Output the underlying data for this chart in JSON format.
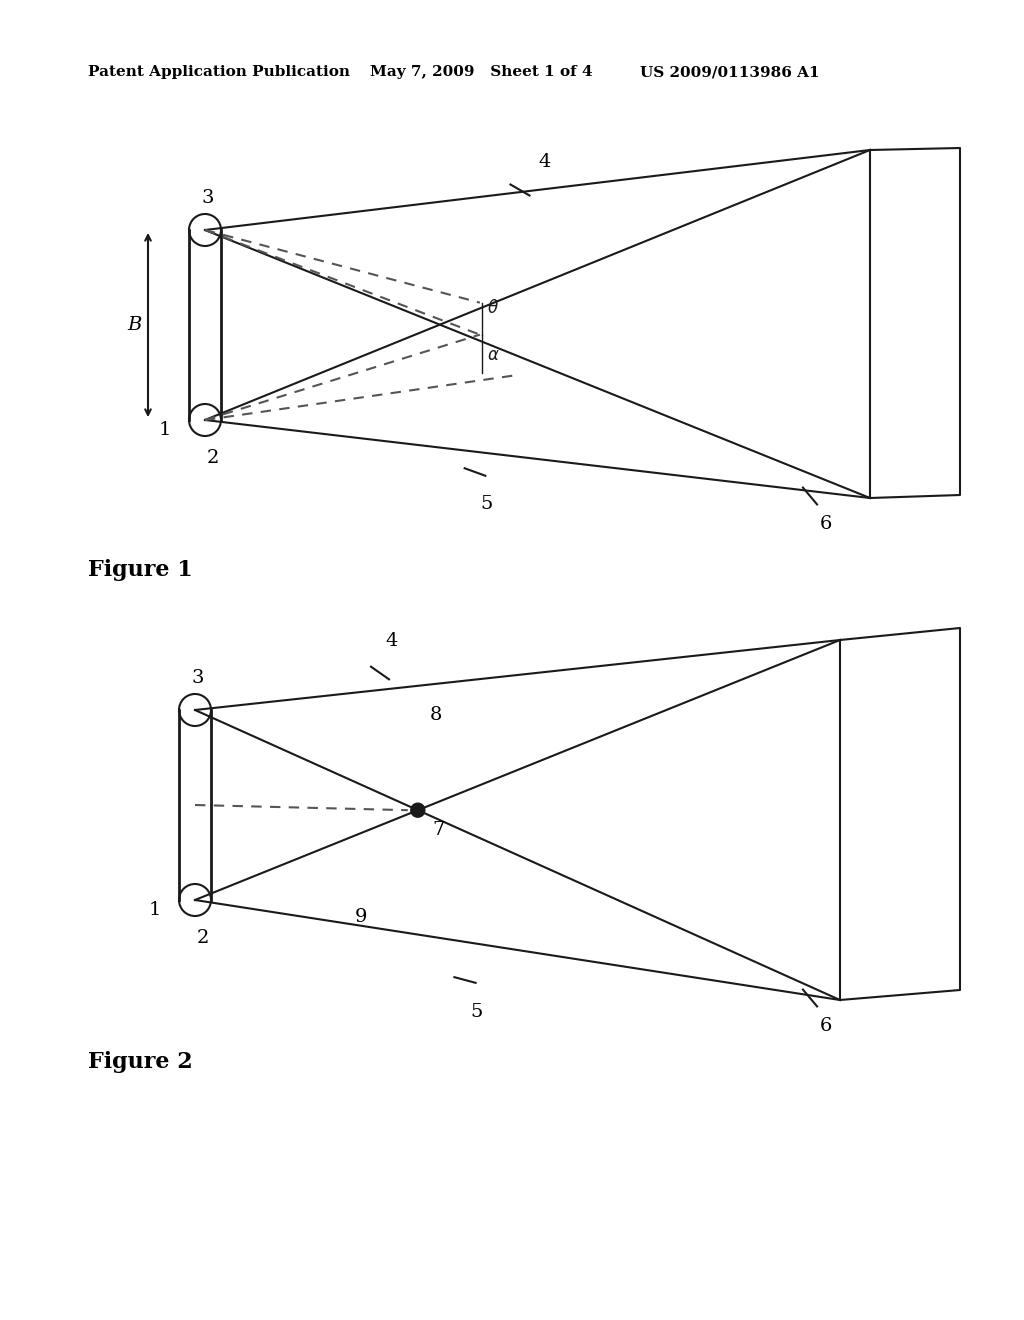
{
  "bg_color": "#ffffff",
  "line_color": "#1a1a1a",
  "dashed_color": "#555555",
  "header_left": "Patent Application Publication",
  "header_mid": "May 7, 2009   Sheet 1 of 4",
  "header_right": "US 2009/0113986 A1",
  "fig1_label": "Figure 1",
  "fig2_label": "Figure 2",
  "font_size_header": 11,
  "font_size_label": 16,
  "font_size_annot": 14
}
